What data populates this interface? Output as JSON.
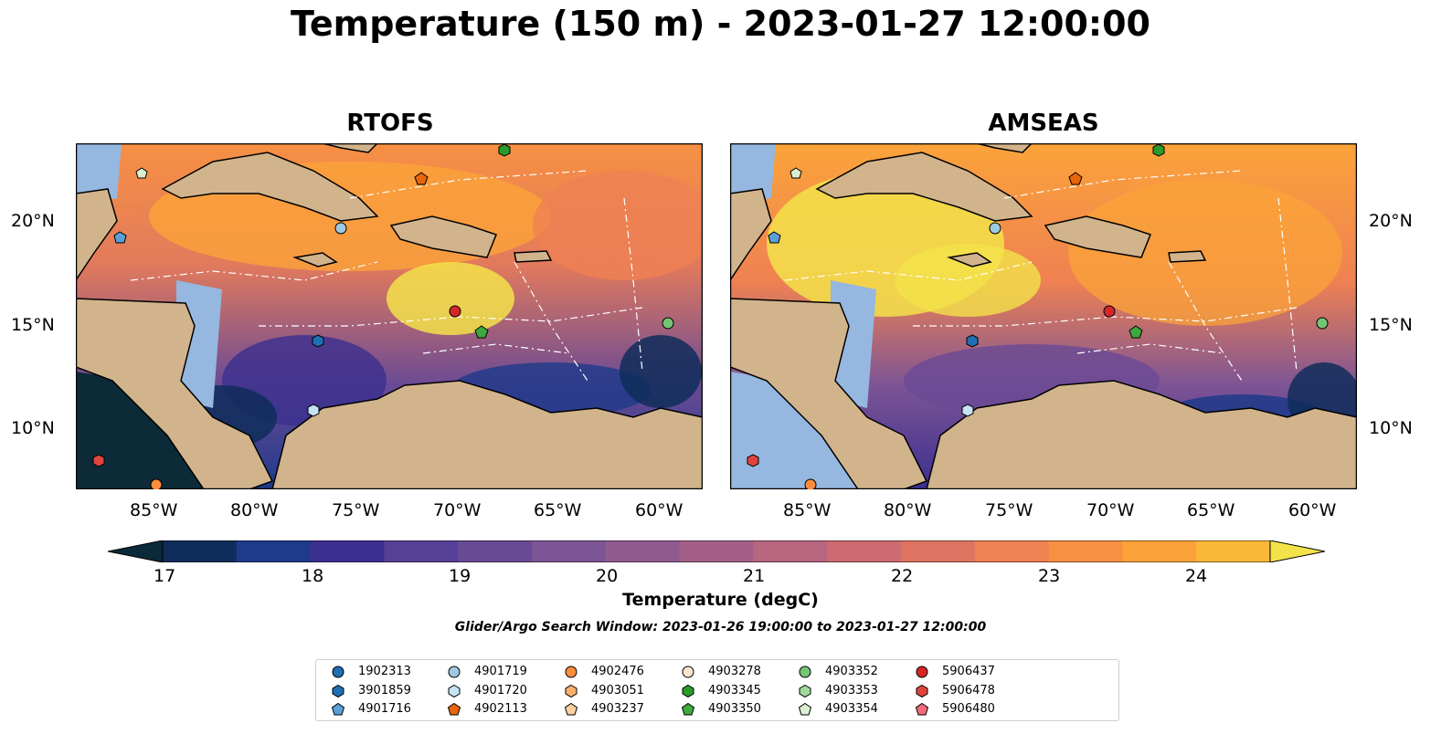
{
  "title": "Temperature (150 m) - 2023-01-27 12:00:00",
  "panels": [
    {
      "title": "RTOFS"
    },
    {
      "title": "AMSEAS"
    }
  ],
  "axes": {
    "lon_labels": [
      "85°W",
      "80°W",
      "75°W",
      "70°W",
      "65°W",
      "60°W"
    ],
    "lat_labels": [
      "20°N",
      "15°N",
      "10°N"
    ]
  },
  "colorbar": {
    "ticks": [
      "17",
      "18",
      "19",
      "20",
      "21",
      "22",
      "23",
      "24"
    ],
    "label": "Temperature (degC)",
    "colors": [
      "#0a2a3a",
      "#0f2d5a",
      "#1e3a8a",
      "#3b2f8f",
      "#563f96",
      "#6a4a95",
      "#7d5495",
      "#8f5b8f",
      "#a45f88",
      "#b86580",
      "#cc6b72",
      "#df7462",
      "#ef8152",
      "#f79043",
      "#fba33a",
      "#fbb838",
      "#f3e24a"
    ],
    "extend": "both"
  },
  "subtitle": "Glider/Argo Search Window: 2023-01-26 19:00:00 to 2023-01-27 12:00:00",
  "legend": [
    {
      "id": "1902313",
      "shape": "circle",
      "color": "#1f6fb4"
    },
    {
      "id": "3901859",
      "shape": "hexagon",
      "color": "#1f6fb4"
    },
    {
      "id": "4901716",
      "shape": "pentagon",
      "color": "#5aa0d8"
    },
    {
      "id": "4901719",
      "shape": "circle",
      "color": "#9ecae1"
    },
    {
      "id": "4901720",
      "shape": "hexagon",
      "color": "#c6e2f5"
    },
    {
      "id": "4902113",
      "shape": "pentagon",
      "color": "#e8640d"
    },
    {
      "id": "4902476",
      "shape": "circle",
      "color": "#fd8d3c"
    },
    {
      "id": "4903051",
      "shape": "hexagon",
      "color": "#fdae6b"
    },
    {
      "id": "4903237",
      "shape": "pentagon",
      "color": "#fdd0a2"
    },
    {
      "id": "4903278",
      "shape": "circle",
      "color": "#fde6d0"
    },
    {
      "id": "4903345",
      "shape": "hexagon",
      "color": "#2a9a2a"
    },
    {
      "id": "4903350",
      "shape": "pentagon",
      "color": "#3caa3c"
    },
    {
      "id": "4903352",
      "shape": "circle",
      "color": "#74c476"
    },
    {
      "id": "4903353",
      "shape": "hexagon",
      "color": "#a1d99b"
    },
    {
      "id": "4903354",
      "shape": "pentagon",
      "color": "#d8f0d0"
    },
    {
      "id": "5906437",
      "shape": "circle",
      "color": "#d62728"
    },
    {
      "id": "5906478",
      "shape": "hexagon",
      "color": "#e0443e"
    },
    {
      "id": "5906480",
      "shape": "pentagon",
      "color": "#f06c78"
    }
  ],
  "map_colors": {
    "land": "#d2b48c",
    "shelf": "#95b7e0",
    "deep": "#0c2a38"
  }
}
